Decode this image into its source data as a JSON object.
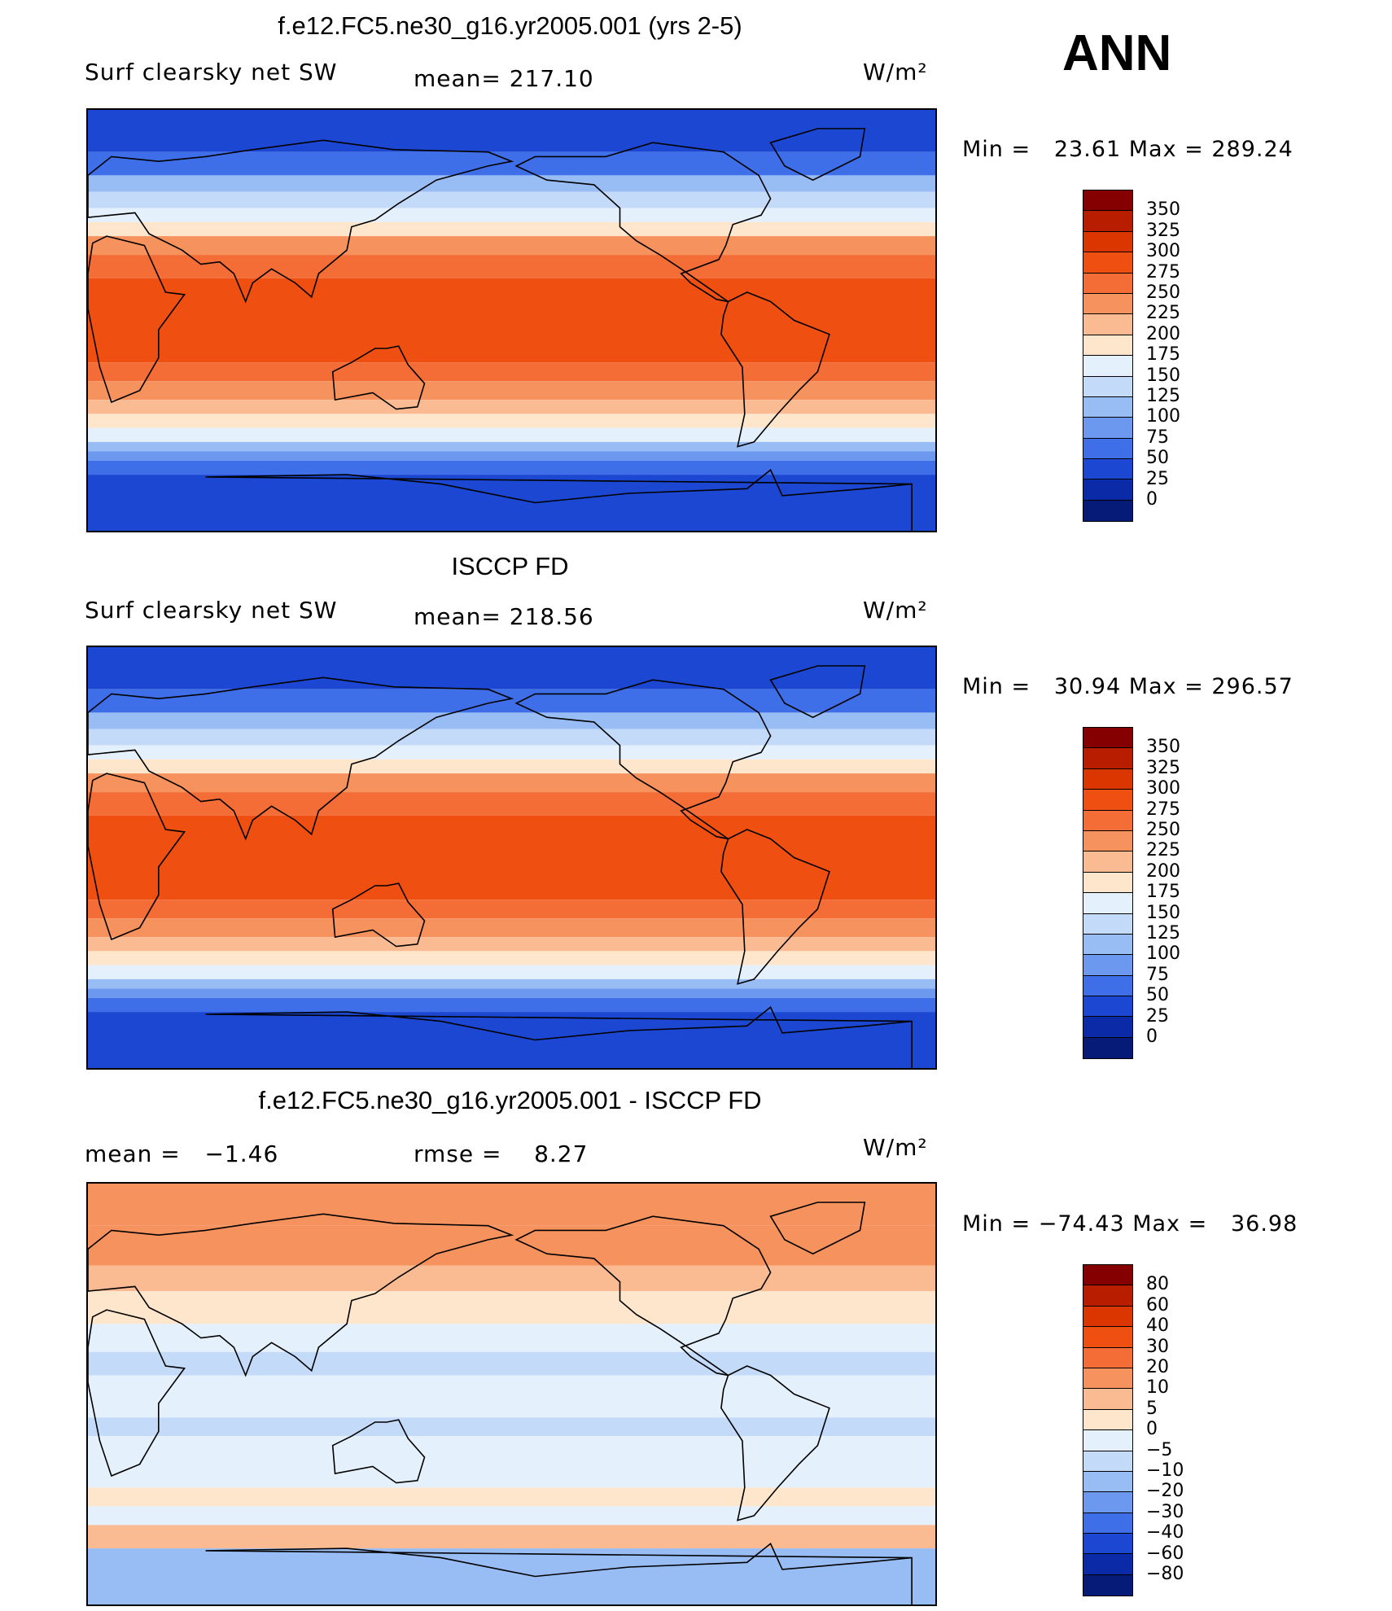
{
  "figure": {
    "season": "ANN",
    "units": "W/m²"
  },
  "chart_data": [
    {
      "type": "heatmap",
      "title": "f.e12.FC5.ne30_g16.yr2005.001 (yrs 2-5)",
      "left_label": "Surf clearsky net SW",
      "center_label": "mean= 217.10",
      "units": "W/m²",
      "mean": 217.1,
      "min_label": "Min =   23.61 Max = 289.24",
      "min": 23.61,
      "max": 289.24,
      "xlim": [
        -180,
        180
      ],
      "ylim": [
        -90,
        90
      ],
      "colorbar_levels": [
        "350",
        "325",
        "300",
        "275",
        "250",
        "225",
        "200",
        "175",
        "150",
        "125",
        "100",
        "75",
        "50",
        "25",
        "0"
      ],
      "colorbar_colors": [
        "#850000",
        "#b81d00",
        "#db3600",
        "#f04f12",
        "#f46c36",
        "#f6925e",
        "#fabb92",
        "#fee6cc",
        "#e4f0fb",
        "#c4daf9",
        "#98bdf5",
        "#6d98ef",
        "#3f6fe8",
        "#1c47d2",
        "#0a2aa8",
        "#061a78"
      ]
    },
    {
      "type": "heatmap",
      "title": "ISCCP FD",
      "left_label": "Surf clearsky net SW",
      "center_label": "mean= 218.56",
      "units": "W/m²",
      "mean": 218.56,
      "min_label": "Min =   30.94 Max = 296.57",
      "min": 30.94,
      "max": 296.57,
      "xlim": [
        -180,
        180
      ],
      "ylim": [
        -90,
        90
      ],
      "colorbar_levels": [
        "350",
        "325",
        "300",
        "275",
        "250",
        "225",
        "200",
        "175",
        "150",
        "125",
        "100",
        "75",
        "50",
        "25",
        "0"
      ],
      "colorbar_colors": [
        "#850000",
        "#b81d00",
        "#db3600",
        "#f04f12",
        "#f46c36",
        "#f6925e",
        "#fabb92",
        "#fee6cc",
        "#e4f0fb",
        "#c4daf9",
        "#98bdf5",
        "#6d98ef",
        "#3f6fe8",
        "#1c47d2",
        "#0a2aa8",
        "#061a78"
      ]
    },
    {
      "type": "heatmap",
      "title": "f.e12.FC5.ne30_g16.yr2005.001 - ISCCP FD",
      "left_label": "mean =   −1.46",
      "center_label": "rmse =    8.27",
      "units": "W/m²",
      "mean": -1.46,
      "rmse": 8.27,
      "min_label": "Min = −74.43 Max =   36.98",
      "min": -74.43,
      "max": 36.98,
      "xlim": [
        -180,
        180
      ],
      "ylim": [
        -90,
        90
      ],
      "colorbar_levels": [
        "80",
        "60",
        "40",
        "30",
        "20",
        "10",
        "5",
        "0",
        "−5",
        "−10",
        "−20",
        "−30",
        "−40",
        "−60",
        "−80"
      ],
      "colorbar_colors": [
        "#850000",
        "#b81d00",
        "#db3600",
        "#f04f12",
        "#f46c36",
        "#f6925e",
        "#fabb92",
        "#fee6cc",
        "#e4f0fb",
        "#c4daf9",
        "#98bdf5",
        "#6d98ef",
        "#3f6fe8",
        "#1c47d2",
        "#0a2aa8",
        "#061a78"
      ]
    }
  ]
}
